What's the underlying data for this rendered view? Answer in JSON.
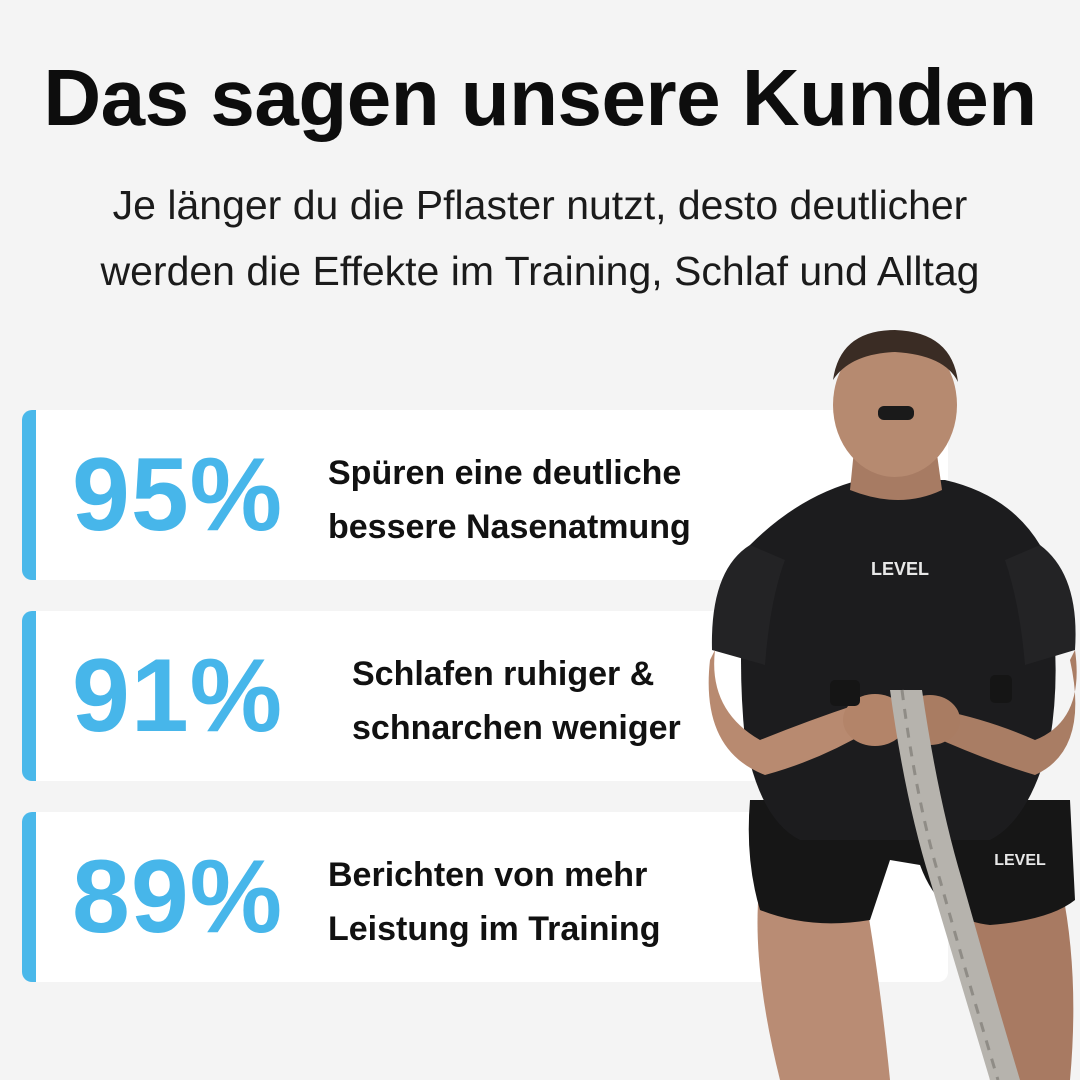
{
  "header": {
    "title": "Das sagen unsere Kunden",
    "subtitle_line1": "Je länger du die Pflaster nutzt, desto deutlicher",
    "subtitle_line2": "werden die Effekte im Training, Schlaf und Alltag"
  },
  "stats": [
    {
      "value": "95%",
      "line1": "Spüren eine deutliche",
      "line2": "bessere Nasenatmung"
    },
    {
      "value": "91%",
      "line1": "Schlafen ruhiger &",
      "line2": "schnarchen weniger"
    },
    {
      "value": "89%",
      "line1": "Berichten von mehr",
      "line2": "Leistung im Training"
    }
  ],
  "athlete": {
    "shirt_logo": "LEVEL",
    "shorts_logo": "LEVEL"
  },
  "colors": {
    "accent": "#47b6ea",
    "background": "#f4f4f4",
    "card": "#ffffff",
    "text": "#111111"
  }
}
